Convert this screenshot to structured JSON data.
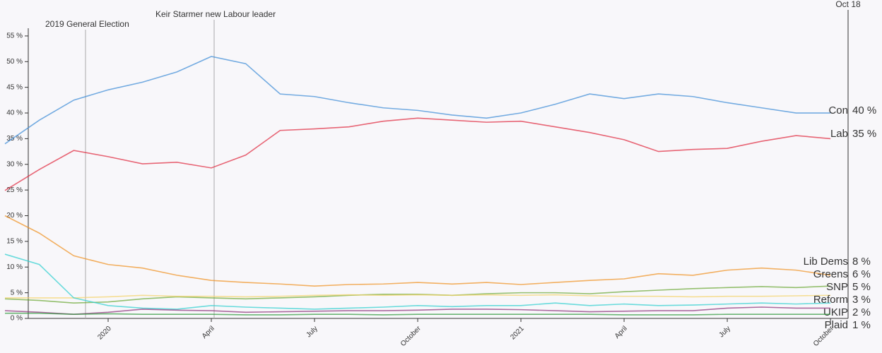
{
  "chart_data": {
    "type": "line",
    "annotations": [
      "2019 General Election",
      "Keir Starmer new Labour leader"
    ],
    "end_date": "Oct 18",
    "categories": [
      null,
      null,
      null,
      "2020",
      null,
      null,
      "April",
      null,
      null,
      "July",
      null,
      null,
      "October",
      null,
      null,
      "2021",
      null,
      null,
      "April",
      null,
      null,
      "July",
      null,
      null,
      "October"
    ],
    "ylim": [
      0,
      56.5
    ],
    "yticks": [
      {
        "value": 0,
        "label": "0 %"
      },
      {
        "value": 5,
        "label": "5 %"
      },
      {
        "value": 10,
        "label": "10 %"
      },
      {
        "value": 15,
        "label": "15 %"
      },
      {
        "value": 20,
        "label": "20 %"
      },
      {
        "value": 25,
        "label": "25 %"
      },
      {
        "value": 30,
        "label": "30 %"
      },
      {
        "value": 35,
        "label": "35 %"
      },
      {
        "value": 40,
        "label": "40 %"
      },
      {
        "value": 45,
        "label": "45 %"
      },
      {
        "value": 50,
        "label": "50 %"
      },
      {
        "value": 55,
        "label": "55 %"
      }
    ],
    "series": [
      {
        "name": "Con",
        "color": "#3a8ad6",
        "latest": {
          "value": 40,
          "label": "40 %"
        },
        "values": [
          34,
          38.6,
          42.5,
          44.5,
          46,
          48,
          51,
          49.6,
          43.7,
          43.2,
          42,
          41,
          40.5,
          39.6,
          39,
          40,
          41.7,
          43.7,
          42.8,
          43.7,
          43.2,
          42,
          41,
          40,
          40
        ]
      },
      {
        "name": "Lab",
        "color": "#e0263c",
        "latest": {
          "value": 35,
          "label": "35 %"
        },
        "values": [
          24.9,
          29,
          32.7,
          31.5,
          30.1,
          30.4,
          29.3,
          31.8,
          36.6,
          36.9,
          37.3,
          38.4,
          39,
          38.6,
          38.2,
          38.4,
          37.3,
          36.2,
          34.8,
          32.5,
          32.9,
          33.1,
          34.5,
          35.6,
          35
        ]
      },
      {
        "name": "Lib Dems",
        "color": "#f0901e",
        "latest": {
          "value": 8,
          "label": "8 %"
        },
        "values": [
          20,
          16.6,
          12.2,
          10.5,
          9.8,
          8.4,
          7.4,
          7,
          6.7,
          6.3,
          6.6,
          6.7,
          7,
          6.7,
          7,
          6.6,
          7,
          7.4,
          7.7,
          8.7,
          8.4,
          9.4,
          9.8,
          9.4,
          8.4
        ]
      },
      {
        "name": "Greens",
        "color": "#6aa632",
        "latest": {
          "value": 6,
          "label": "6 %"
        },
        "values": [
          3.8,
          3.5,
          3,
          3.2,
          3.8,
          4.2,
          4,
          3.8,
          4,
          4.2,
          4.5,
          4.7,
          4.7,
          4.5,
          4.8,
          5,
          5,
          4.8,
          5.2,
          5.5,
          5.8,
          6,
          6.2,
          6,
          6.3
        ]
      },
      {
        "name": "SNP",
        "color": "#f3d36a",
        "latest": {
          "value": 5,
          "label": "5 %"
        },
        "values": [
          4,
          4,
          4,
          4.2,
          4.5,
          4.3,
          4.3,
          4.2,
          4.3,
          4.5,
          4.6,
          4.5,
          4.6,
          4.5,
          4.6,
          4.5,
          4.6,
          4.4,
          4.3,
          4.3,
          4.2,
          4.3,
          4.3,
          4.4,
          4.5
        ]
      },
      {
        "name": "Reform",
        "color": "#2ccfcf",
        "latest": {
          "value": 3,
          "label": "3 %"
        },
        "values": [
          12.5,
          10.5,
          4,
          2.5,
          2,
          1.8,
          2.5,
          2.2,
          2,
          1.8,
          2,
          2.2,
          2.5,
          2.3,
          2.5,
          2.5,
          3,
          2.5,
          2.8,
          2.5,
          2.6,
          2.8,
          3,
          2.8,
          3
        ]
      },
      {
        "name": "UKIP",
        "color": "#8a2f78",
        "latest": {
          "value": 2,
          "label": "2 %"
        },
        "values": [
          1.5,
          1.2,
          0.8,
          1.2,
          1.8,
          1.6,
          1.5,
          1.2,
          1.3,
          1.4,
          1.5,
          1.5,
          1.6,
          1.8,
          1.8,
          1.7,
          1.5,
          1.3,
          1.4,
          1.5,
          1.5,
          2,
          2.2,
          2,
          2
        ]
      },
      {
        "name": "Plaid",
        "color": "#2f9a3c",
        "latest": {
          "value": 1,
          "label": "1 %"
        },
        "values": [
          1,
          1,
          0.8,
          0.9,
          0.8,
          0.8,
          0.8,
          0.7,
          0.7,
          0.8,
          0.8,
          0.7,
          0.8,
          0.8,
          0.8,
          0.8,
          0.8,
          0.8,
          0.7,
          0.7,
          0.7,
          0.8,
          0.8,
          0.8,
          0.8
        ]
      }
    ]
  }
}
